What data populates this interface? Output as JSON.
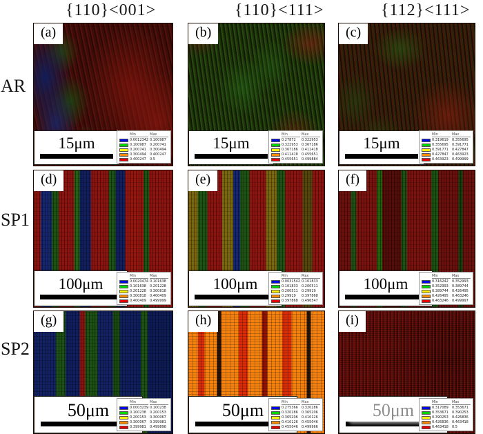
{
  "figure": {
    "column_headers": [
      "{110}<001>",
      "{110}<111>",
      "{112}<111>"
    ],
    "row_labels": [
      "AR",
      "SP1",
      "SP2"
    ],
    "legend_header": {
      "min": "Min",
      "max": "Max"
    },
    "legend_colors": {
      "blue": "#0008e6",
      "green": "#00d400",
      "yellow": "#fff200",
      "orange": "#ff8c00",
      "red": "#e60000"
    },
    "panels": [
      {
        "id": "a",
        "label": "(a)",
        "row": 0,
        "col": 0,
        "scale_label": "15μm",
        "legend": [
          {
            "color": "blue",
            "min": "0.00123426",
            "max": "0.100987"
          },
          {
            "color": "green",
            "min": "0.100987",
            "max": "0.200741"
          },
          {
            "color": "yellow",
            "min": "0.200741",
            "max": "0.300494"
          },
          {
            "color": "orange",
            "min": "0.300494",
            "max": "0.400247"
          },
          {
            "color": "red",
            "min": "0.400247",
            "max": "0.5"
          }
        ]
      },
      {
        "id": "b",
        "label": "(b)",
        "row": 0,
        "col": 1,
        "scale_label": "15μm",
        "legend": [
          {
            "color": "blue",
            "min": "0.27872",
            "max": "0.322953"
          },
          {
            "color": "green",
            "min": "0.322953",
            "max": "0.367186"
          },
          {
            "color": "yellow",
            "min": "0.367186",
            "max": "0.411418"
          },
          {
            "color": "orange",
            "min": "0.411418",
            "max": "0.455651"
          },
          {
            "color": "red",
            "min": "0.455651",
            "max": "0.499884"
          }
        ]
      },
      {
        "id": "c",
        "label": "(c)",
        "row": 0,
        "col": 2,
        "scale_label": "15μm",
        "legend": [
          {
            "color": "blue",
            "min": "0.319619",
            "max": "0.355695"
          },
          {
            "color": "green",
            "min": "0.355695",
            "max": "0.391771"
          },
          {
            "color": "yellow",
            "min": "0.391771",
            "max": "0.427847"
          },
          {
            "color": "orange",
            "min": "0.427847",
            "max": "0.463923"
          },
          {
            "color": "red",
            "min": "0.463923",
            "max": "0.499999"
          }
        ]
      },
      {
        "id": "d",
        "label": "(d)",
        "row": 1,
        "col": 0,
        "scale_label": "100μm",
        "legend": [
          {
            "color": "blue",
            "min": "0.00204745",
            "max": "0.101638"
          },
          {
            "color": "green",
            "min": "0.101638",
            "max": "0.201228"
          },
          {
            "color": "yellow",
            "min": "0.201228",
            "max": "0.300818"
          },
          {
            "color": "orange",
            "min": "0.300818",
            "max": "0.400409"
          },
          {
            "color": "red",
            "min": "0.400409",
            "max": "0.499999"
          }
        ]
      },
      {
        "id": "e",
        "label": "(e)",
        "row": 1,
        "col": 1,
        "scale_label": "100μm",
        "legend": [
          {
            "color": "blue",
            "min": "0.00315421",
            "max": "0.101833"
          },
          {
            "color": "green",
            "min": "0.101833",
            "max": "0.200511"
          },
          {
            "color": "yellow",
            "min": "0.200511",
            "max": "0.29919"
          },
          {
            "color": "orange",
            "min": "0.29919",
            "max": "0.397868"
          },
          {
            "color": "red",
            "min": "0.397868",
            "max": "0.496547"
          }
        ]
      },
      {
        "id": "f",
        "label": "(f)",
        "row": 1,
        "col": 2,
        "scale_label": "100μm",
        "legend": [
          {
            "color": "blue",
            "min": "0.316242",
            "max": "0.352993"
          },
          {
            "color": "green",
            "min": "0.352993",
            "max": "0.389744"
          },
          {
            "color": "yellow",
            "min": "0.389744",
            "max": "0.426495"
          },
          {
            "color": "orange",
            "min": "0.426495",
            "max": "0.463246"
          },
          {
            "color": "red",
            "min": "0.463246",
            "max": "0.499997"
          }
        ]
      },
      {
        "id": "g",
        "label": "(g)",
        "row": 2,
        "col": 0,
        "scale_label": "50μm",
        "legend": [
          {
            "color": "blue",
            "min": "0.000323985",
            "max": "0.100238"
          },
          {
            "color": "green",
            "min": "0.100238",
            "max": "0.200153"
          },
          {
            "color": "yellow",
            "min": "0.200153",
            "max": "0.300067"
          },
          {
            "color": "orange",
            "min": "0.300067",
            "max": "0.399981"
          },
          {
            "color": "red",
            "min": "0.399981",
            "max": "0.499896"
          }
        ]
      },
      {
        "id": "h",
        "label": "(h)",
        "row": 2,
        "col": 1,
        "scale_label": "50μm",
        "legend": [
          {
            "color": "blue",
            "min": "0.275366",
            "max": "0.320286"
          },
          {
            "color": "green",
            "min": "0.320286",
            "max": "0.365206"
          },
          {
            "color": "yellow",
            "min": "0.365206",
            "max": "0.410126"
          },
          {
            "color": "orange",
            "min": "0.410126",
            "max": "0.455046"
          },
          {
            "color": "red",
            "min": "0.455046",
            "max": "0.499966"
          }
        ]
      },
      {
        "id": "i",
        "label": "(i)",
        "row": 2,
        "col": 2,
        "scale_label": "50μm",
        "watermark": true,
        "legend": [
          {
            "color": "blue",
            "min": "0.317089",
            "max": "0.353671"
          },
          {
            "color": "green",
            "min": "0.353671",
            "max": "0.390253"
          },
          {
            "color": "yellow",
            "min": "0.390253",
            "max": "0.426836"
          },
          {
            "color": "orange",
            "min": "0.426836",
            "max": "0.463418"
          },
          {
            "color": "red",
            "min": "0.463418",
            "max": "0.5"
          }
        ]
      }
    ]
  }
}
